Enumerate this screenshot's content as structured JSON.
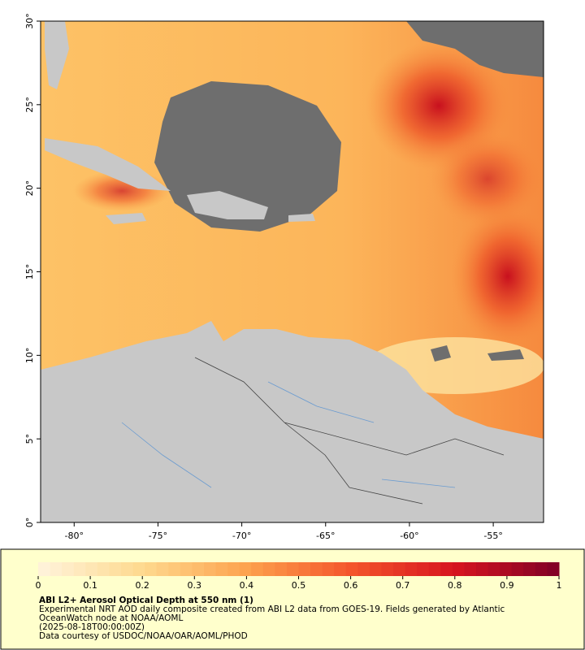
{
  "map": {
    "xlim": [
      -82,
      -52
    ],
    "ylim": [
      0,
      30
    ],
    "xticks": [
      {
        "value": -80,
        "label": "-80°"
      },
      {
        "value": -75,
        "label": "-75°"
      },
      {
        "value": -70,
        "label": "-70°"
      },
      {
        "value": -65,
        "label": "-65°"
      },
      {
        "value": -60,
        "label": "-60°"
      },
      {
        "value": -55,
        "label": "-55°"
      }
    ],
    "yticks": [
      {
        "value": 0,
        "label": "0°"
      },
      {
        "value": 5,
        "label": "5°"
      },
      {
        "value": 10,
        "label": "10°"
      },
      {
        "value": 15,
        "label": "15°"
      },
      {
        "value": 20,
        "label": "20°"
      },
      {
        "value": 25,
        "label": "25°"
      },
      {
        "value": 30,
        "label": "30°"
      }
    ]
  },
  "colorbar": {
    "range": [
      0,
      1
    ],
    "ticks": [
      0,
      0.1,
      0.2,
      0.3,
      0.4,
      0.5,
      0.6,
      0.7,
      0.8,
      0.9,
      1
    ],
    "colors": [
      "#fff3dc",
      "#fed98e",
      "#fda24e",
      "#f4552b",
      "#d7141f",
      "#7f0026"
    ]
  },
  "caption": {
    "title": "ABI L2+ Aerosol Optical Depth at 550 nm (1)",
    "lines": [
      "Experimental NRT AOD daily composite created from ABI L2 data from GOES-19. Fields generated by Atlantic",
      "OceanWatch node at NOAA/AOML",
      "(2025-08-18T00:00:00Z)",
      "Data courtesy of USDOC/NOAA/OAR/AOML/PHOD"
    ]
  }
}
